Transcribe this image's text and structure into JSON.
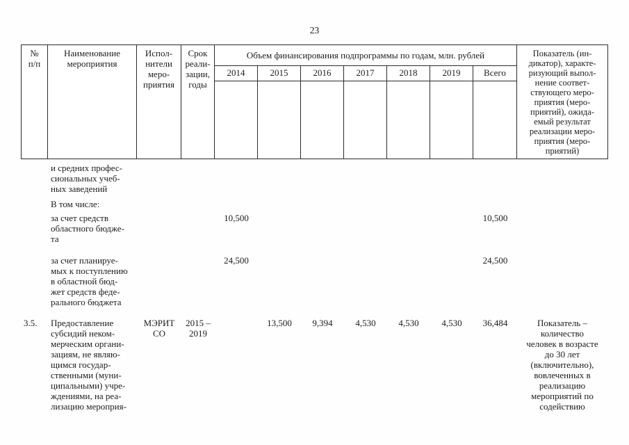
{
  "page": {
    "number": "23"
  },
  "table": {
    "headers": {
      "num": "№\nп/п",
      "name": "Наименование\nмероприятия",
      "executors": "Испол-\nнители\nмеро-\nприятия",
      "term": "Срок\nреали-\nзации,\nгоды",
      "financing_title": "Объем финансирования подпрограммы по годам, млн. рублей",
      "years": [
        "2014",
        "2015",
        "2016",
        "2017",
        "2018",
        "2019",
        "Всего"
      ],
      "indicator": "Показатель (ин-\nдикатор), характе-\nризующий выпол-\nнение соответ-\nствующего меро-\nприятия (меро-\nприятий), ожида-\nемый результат\nреализации меро-\nприятия (меро-\nприятий)"
    },
    "rows": [
      {
        "num": "",
        "name": "и средних профес-\nсиональных учеб-\nных заведений",
        "executors": "",
        "term": "",
        "values": [
          "",
          "",
          "",
          "",
          "",
          "",
          ""
        ],
        "indicator": ""
      },
      {
        "num": "",
        "name": "В том числе:",
        "executors": "",
        "term": "",
        "values": [
          "",
          "",
          "",
          "",
          "",
          "",
          ""
        ],
        "indicator": ""
      },
      {
        "num": "",
        "name": "за счет средств\nобластного бюдже-\nта",
        "executors": "",
        "term": "",
        "values": [
          "10,500",
          "",
          "",
          "",
          "",
          "",
          "10,500"
        ],
        "indicator": ""
      },
      {
        "num": "",
        "name": "за счет планируе-\nмых к поступлению\nв областной бюд-\nжет средств феде-\nрального бюджета",
        "executors": "",
        "term": "",
        "values": [
          "24,500",
          "",
          "",
          "",
          "",
          "",
          "24,500"
        ],
        "indicator": ""
      },
      {
        "num": "3.5.",
        "name": "Предоставление\nсубсидий неком-\nмерческим органи-\nзациям, не являю-\nщимся государ-\nственными (муни-\nципальными) учре-\nждениями, на реа-\nлизацию мероприя-",
        "executors": "МЭРИТ\nСО",
        "term": "2015 –\n2019",
        "values": [
          "",
          "13,500",
          "9,394",
          "4,530",
          "4,530",
          "4,530",
          "36,484"
        ],
        "indicator": "Показатель –\nколичество\nчеловек в возрасте\nдо 30 лет\n(включительно),\nвовлеченных в\nреализацию\nмероприятий по\nсодействию"
      }
    ]
  }
}
